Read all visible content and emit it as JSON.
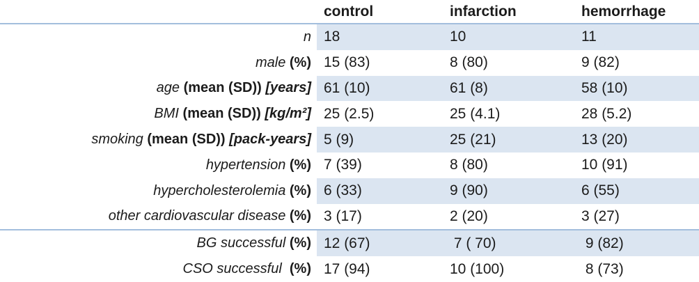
{
  "table": {
    "columns": [
      "control",
      "infarction",
      "hemorrhage"
    ],
    "colors": {
      "band": "#dbe5f1",
      "rule": "#a3bedd",
      "text": "#1b1b1b"
    },
    "rows": [
      {
        "label_parts": [
          {
            "text": "n",
            "style": "i"
          }
        ],
        "values": [
          "18",
          "10",
          "11"
        ],
        "shaded": true
      },
      {
        "label_parts": [
          {
            "text": "male ",
            "style": "i"
          },
          {
            "text": "(%)",
            "style": "b"
          }
        ],
        "values": [
          "15 (83)",
          "8 (80)",
          "9 (82)"
        ],
        "shaded": false
      },
      {
        "label_parts": [
          {
            "text": "age ",
            "style": "i"
          },
          {
            "text": "(mean (SD)) ",
            "style": "b"
          },
          {
            "text": "[years]",
            "style": "bi"
          }
        ],
        "values": [
          "61 (10)",
          "61 (8)",
          "58 (10)"
        ],
        "shaded": true
      },
      {
        "label_parts": [
          {
            "text": "BMI ",
            "style": "i"
          },
          {
            "text": "(mean (SD)) ",
            "style": "b"
          },
          {
            "text": "[kg/m²]",
            "style": "bi"
          }
        ],
        "values": [
          "25 (2.5)",
          "25 (4.1)",
          "28 (5.2)"
        ],
        "shaded": false
      },
      {
        "label_parts": [
          {
            "text": "smoking ",
            "style": "i"
          },
          {
            "text": "(mean (SD)) ",
            "style": "b"
          },
          {
            "text": "[pack-years]",
            "style": "bi"
          }
        ],
        "values": [
          "5 (9)",
          "25 (21)",
          "13 (20)"
        ],
        "shaded": true
      },
      {
        "label_parts": [
          {
            "text": "hypertension ",
            "style": "i"
          },
          {
            "text": "(%)",
            "style": "b"
          }
        ],
        "values": [
          "7 (39)",
          "8 (80)",
          "10 (91)"
        ],
        "shaded": false
      },
      {
        "label_parts": [
          {
            "text": "hypercholesterolemia ",
            "style": "i"
          },
          {
            "text": "(%)",
            "style": "b"
          }
        ],
        "values": [
          "6 (33)",
          "9 (90)",
          "6 (55)"
        ],
        "shaded": true
      },
      {
        "label_parts": [
          {
            "text": "other cardiovascular disease ",
            "style": "i"
          },
          {
            "text": "(%)",
            "style": "b"
          }
        ],
        "values": [
          "3 (17)",
          "2 (20)",
          "3 (27)"
        ],
        "shaded": false
      },
      {
        "label_parts": [
          {
            "text": "BG successful ",
            "style": "i"
          },
          {
            "text": "(%)",
            "style": "b"
          }
        ],
        "values": [
          "12 (67)",
          " 7 ( 70)",
          " 9 (82)"
        ],
        "shaded": true,
        "separator_above": true
      },
      {
        "label_parts": [
          {
            "text": "CSO successful  ",
            "style": "i"
          },
          {
            "text": "(%)",
            "style": "b"
          }
        ],
        "values": [
          "17 (94)",
          "10 (100)",
          " 8 (73)"
        ],
        "shaded": false
      }
    ]
  }
}
